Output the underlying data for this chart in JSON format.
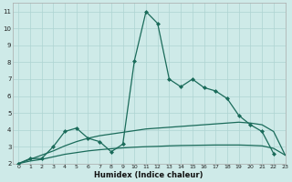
{
  "xlabel": "Humidex (Indice chaleur)",
  "bg_color": "#ceeae8",
  "grid_color": "#aed4d2",
  "line_color": "#1a6b5a",
  "xlim": [
    -0.5,
    23
  ],
  "ylim": [
    2,
    11.5
  ],
  "xticks": [
    0,
    1,
    2,
    3,
    4,
    5,
    6,
    7,
    8,
    9,
    10,
    11,
    12,
    13,
    14,
    15,
    16,
    17,
    18,
    19,
    20,
    21,
    22,
    23
  ],
  "yticks": [
    2,
    3,
    4,
    5,
    6,
    7,
    8,
    9,
    10,
    11
  ],
  "lines": [
    {
      "x": [
        0,
        1,
        2,
        3,
        4,
        5,
        6,
        7,
        8,
        9,
        10,
        11,
        12,
        13,
        14,
        15,
        16,
        17,
        18,
        19,
        20,
        21,
        22
      ],
      "y": [
        2.0,
        2.3,
        2.3,
        3.0,
        3.9,
        4.1,
        3.5,
        3.3,
        2.7,
        3.15,
        8.1,
        11.0,
        10.3,
        7.0,
        6.55,
        7.0,
        6.5,
        6.3,
        5.85,
        4.85,
        4.3,
        3.9,
        2.6
      ],
      "marker": "D",
      "markersize": 2.0,
      "lw": 0.9
    },
    {
      "x": [
        0,
        1,
        2,
        3,
        4,
        5,
        6,
        7,
        8,
        9,
        10,
        11,
        12,
        13,
        14,
        15,
        16,
        17,
        18,
        19,
        20,
        21,
        22,
        23
      ],
      "y": [
        2.0,
        2.25,
        2.5,
        2.75,
        3.05,
        3.3,
        3.5,
        3.65,
        3.75,
        3.85,
        3.95,
        4.05,
        4.1,
        4.15,
        4.2,
        4.25,
        4.3,
        4.35,
        4.4,
        4.45,
        4.4,
        4.3,
        3.9,
        2.5
      ],
      "marker": null,
      "markersize": 0,
      "lw": 0.9
    },
    {
      "x": [
        0,
        1,
        2,
        3,
        4,
        5,
        6,
        7,
        8,
        9,
        10,
        11,
        12,
        13,
        14,
        15,
        16,
        17,
        18,
        19,
        20,
        21,
        22,
        23
      ],
      "y": [
        2.0,
        2.15,
        2.25,
        2.4,
        2.55,
        2.65,
        2.75,
        2.82,
        2.88,
        2.93,
        2.97,
        3.0,
        3.02,
        3.05,
        3.07,
        3.08,
        3.09,
        3.1,
        3.1,
        3.1,
        3.08,
        3.05,
        2.9,
        2.5
      ],
      "marker": null,
      "markersize": 0,
      "lw": 0.9
    }
  ]
}
